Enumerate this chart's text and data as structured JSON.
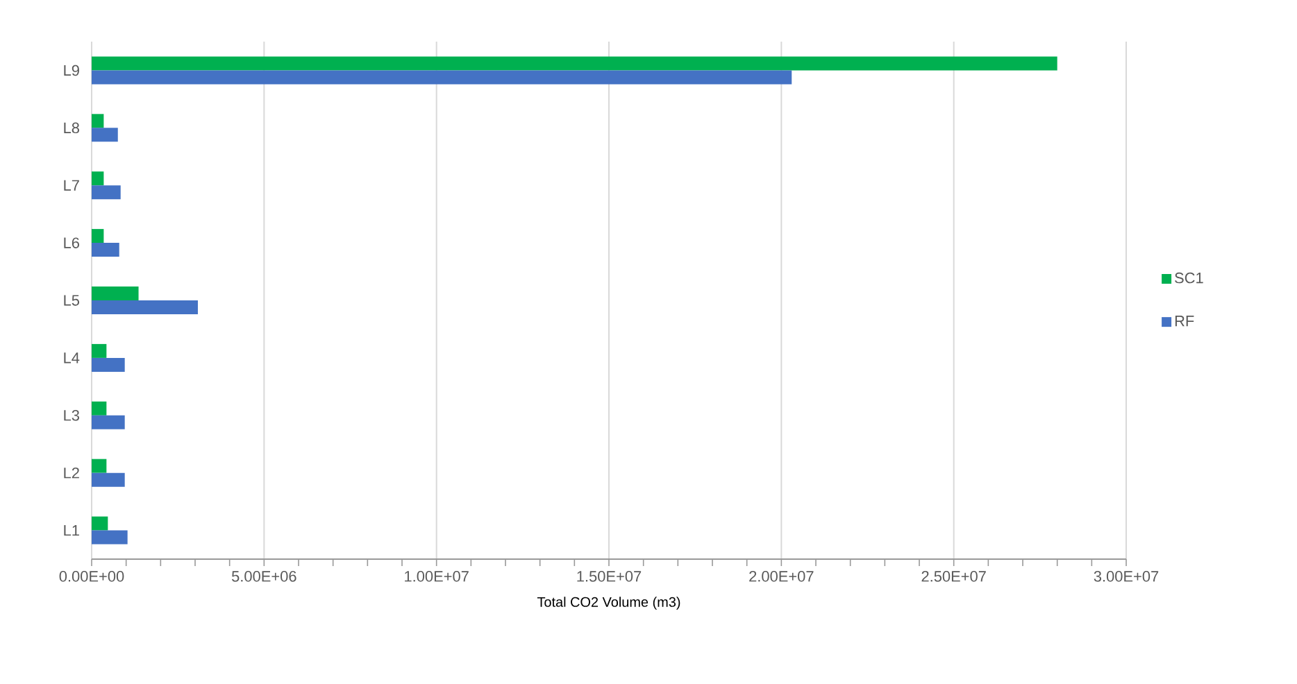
{
  "chart_data": {
    "type": "bar",
    "orientation": "horizontal",
    "xlabel": "Total CO2 Volume (m3)",
    "categories": [
      "L9",
      "L8",
      "L7",
      "L6",
      "L5",
      "L4",
      "L3",
      "L2",
      "L1"
    ],
    "series": [
      {
        "name": "SC1",
        "color": "#00b050",
        "values": [
          28000000,
          350000,
          350000,
          350000,
          1360000,
          430000,
          430000,
          430000,
          470000
        ]
      },
      {
        "name": "RF",
        "color": "#4472c4",
        "values": [
          20300000,
          760000,
          840000,
          800000,
          3080000,
          960000,
          960000,
          960000,
          1040000
        ]
      }
    ],
    "xlim": [
      0,
      30000000
    ],
    "xticks": [
      {
        "value": 0,
        "label": "0.00E+00"
      },
      {
        "value": 5000000,
        "label": "5.00E+06"
      },
      {
        "value": 10000000,
        "label": "1.00E+07"
      },
      {
        "value": 15000000,
        "label": "1.50E+07"
      },
      {
        "value": 20000000,
        "label": "2.00E+07"
      },
      {
        "value": 25000000,
        "label": "2.50E+07"
      },
      {
        "value": 30000000,
        "label": "3.00E+07"
      }
    ],
    "grid": "x",
    "legend": "right"
  }
}
